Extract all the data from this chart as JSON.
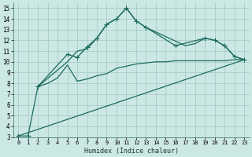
{
  "xlabel": "Humidex (Indice chaleur)",
  "background_color": "#cce8e4",
  "grid_color": "#aaccc8",
  "line_color": "#1a6b60",
  "xlim": [
    -0.5,
    23.5
  ],
  "ylim": [
    3,
    15.5
  ],
  "xticks": [
    0,
    1,
    2,
    3,
    4,
    5,
    6,
    7,
    8,
    9,
    10,
    11,
    12,
    13,
    14,
    15,
    16,
    17,
    18,
    19,
    20,
    21,
    22,
    23
  ],
  "yticks": [
    3,
    4,
    5,
    6,
    7,
    8,
    9,
    10,
    11,
    12,
    13,
    14,
    15
  ],
  "series1_x": [
    0,
    1,
    2,
    5,
    6,
    7,
    8,
    9,
    10,
    11,
    12,
    13,
    16,
    19,
    20,
    21,
    22,
    23
  ],
  "series1_y": [
    3.1,
    3.1,
    7.7,
    10.7,
    10.4,
    11.4,
    12.2,
    13.5,
    14.0,
    15.0,
    13.8,
    13.2,
    11.5,
    12.2,
    12.0,
    11.5,
    10.5,
    10.2
  ],
  "series2_x": [
    2,
    3,
    4,
    5,
    6,
    7,
    8,
    9,
    10,
    11,
    12,
    13,
    14,
    15,
    16,
    17,
    18,
    19,
    20,
    21,
    22,
    23
  ],
  "series2_y": [
    7.7,
    8.0,
    8.5,
    9.7,
    8.2,
    8.4,
    8.7,
    8.9,
    9.4,
    9.6,
    9.8,
    9.9,
    10.0,
    10.0,
    10.1,
    10.1,
    10.1,
    10.1,
    10.1,
    10.1,
    10.2,
    10.2
  ],
  "series3_x": [
    0,
    23
  ],
  "series3_y": [
    3.1,
    10.2
  ],
  "series4_x": [
    2,
    5,
    6,
    7,
    8,
    9,
    10,
    11,
    12,
    13,
    17,
    18,
    19,
    20,
    21,
    22,
    23
  ],
  "series4_y": [
    7.7,
    10.0,
    11.0,
    11.2,
    12.2,
    13.5,
    14.0,
    15.0,
    13.8,
    13.2,
    11.5,
    11.7,
    12.2,
    12.0,
    11.5,
    10.5,
    10.2
  ]
}
